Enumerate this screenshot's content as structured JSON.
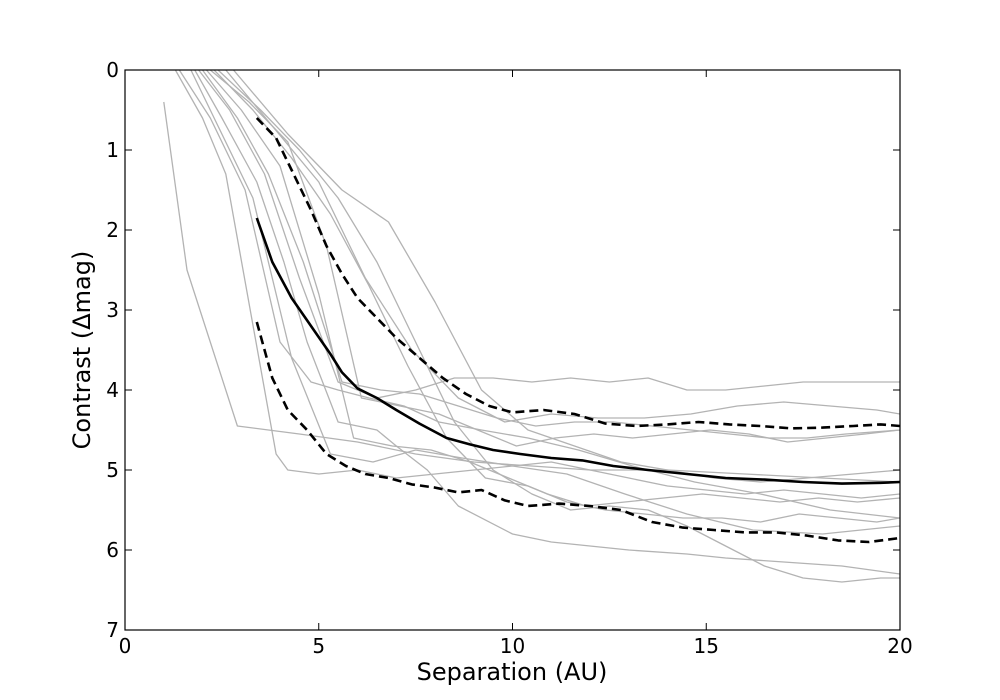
{
  "chart_data": {
    "type": "line",
    "title": "",
    "xlabel": "Separation (AU)",
    "ylabel": "Contrast (Δmag)",
    "xlim": [
      0,
      20
    ],
    "ylim": [
      0,
      7
    ],
    "y_inverted": true,
    "grid": false,
    "legend": "none",
    "x_ticks": [
      0,
      5,
      10,
      15,
      20
    ],
    "y_ticks": [
      0,
      1,
      2,
      3,
      4,
      5,
      6,
      7
    ],
    "colors": {
      "individual": "#b3b3b3",
      "median": "#000000",
      "bounds": "#000000"
    },
    "series": [
      {
        "style": "individual",
        "x": [
          1.0,
          1.6,
          2.9,
          4.5,
          6.0,
          7.5,
          9.0,
          10.5,
          12.0,
          14.0,
          16.0,
          18.0,
          20.0
        ],
        "y": [
          0.4,
          2.5,
          4.45,
          4.55,
          4.65,
          4.8,
          4.9,
          4.95,
          5.0,
          5.0,
          5.05,
          5.1,
          5.15
        ]
      },
      {
        "style": "individual",
        "x": [
          1.3,
          2.0,
          2.6,
          3.9,
          4.2,
          5.0,
          6.0,
          7.0,
          8.0,
          9.0,
          10.0,
          11.0,
          12.0,
          13.0,
          14.0,
          15.0,
          16.0,
          17.0,
          18.0,
          19.0,
          20.0
        ],
        "y": [
          0.0,
          0.6,
          1.3,
          4.8,
          5.0,
          5.05,
          5.0,
          5.1,
          5.05,
          5.0,
          4.95,
          4.9,
          5.0,
          5.1,
          5.2,
          5.25,
          5.3,
          5.25,
          5.3,
          5.35,
          5.3
        ]
      },
      {
        "style": "individual",
        "x": [
          1.4,
          2.2,
          3.1,
          4.0,
          4.8,
          5.5,
          6.3,
          7.2,
          8.1,
          9.2,
          10.4,
          11.7,
          13.1,
          14.7,
          16.4,
          18.2,
          20.0
        ],
        "y": [
          0.0,
          0.6,
          1.5,
          3.4,
          3.9,
          4.0,
          4.1,
          4.2,
          4.4,
          4.5,
          4.6,
          4.75,
          4.95,
          5.15,
          5.3,
          5.5,
          5.6
        ]
      },
      {
        "style": "individual",
        "x": [
          1.7,
          2.4,
          3.3,
          4.3,
          5.3,
          6.4,
          7.5,
          8.7,
          10.0,
          11.4,
          12.9,
          14.5,
          16.2,
          18.0,
          20.0
        ],
        "y": [
          0.0,
          0.7,
          1.6,
          3.6,
          4.8,
          4.9,
          4.75,
          4.85,
          4.95,
          5.05,
          5.3,
          5.55,
          5.75,
          5.8,
          5.7
        ]
      },
      {
        "style": "individual",
        "x": [
          1.8,
          2.5,
          3.4,
          4.1,
          4.7,
          5.5,
          6.5,
          7.0,
          7.8,
          8.6,
          10.0,
          11.0,
          12.0,
          13.0,
          14.5,
          15.5,
          17.0,
          18.5,
          20.0
        ],
        "y": [
          0.0,
          0.6,
          1.4,
          2.4,
          3.4,
          4.4,
          4.5,
          4.7,
          5.0,
          5.45,
          5.8,
          5.9,
          5.95,
          6.0,
          6.05,
          6.1,
          6.15,
          6.2,
          6.3
        ]
      },
      {
        "style": "individual",
        "x": [
          1.9,
          2.7,
          3.6,
          4.5,
          5.5,
          6.5,
          7.5,
          8.5,
          9.5,
          10.5,
          11.5,
          12.5,
          13.5,
          14.5,
          15.5,
          16.5,
          17.5,
          18.5,
          20.0
        ],
        "y": [
          0.0,
          0.5,
          1.3,
          2.6,
          3.9,
          4.1,
          4.0,
          3.85,
          3.85,
          3.9,
          3.85,
          3.9,
          3.85,
          4.0,
          4.0,
          3.95,
          3.9,
          3.9,
          3.9
        ]
      },
      {
        "style": "individual",
        "x": [
          2.0,
          2.9,
          3.7,
          4.6,
          5.6,
          6.6,
          7.6,
          8.6,
          9.6,
          10.6,
          11.6,
          12.6,
          13.6,
          14.6,
          15.6,
          16.6,
          17.6,
          18.6,
          20.0
        ],
        "y": [
          0.0,
          0.6,
          1.3,
          2.4,
          3.9,
          4.0,
          4.05,
          4.2,
          4.35,
          4.45,
          4.4,
          4.4,
          4.45,
          4.5,
          4.55,
          4.6,
          4.6,
          4.55,
          4.5
        ]
      },
      {
        "style": "individual",
        "x": [
          2.1,
          3.0,
          4.0,
          5.0,
          5.9,
          6.9,
          7.9,
          8.9,
          9.9,
          10.9,
          11.9,
          12.9,
          13.9,
          14.9,
          15.9,
          16.9,
          17.9,
          18.9,
          20.0
        ],
        "y": [
          0.0,
          0.5,
          1.2,
          2.8,
          4.6,
          4.7,
          4.75,
          4.9,
          5.1,
          5.3,
          5.45,
          5.4,
          5.35,
          5.3,
          5.35,
          5.4,
          5.35,
          5.4,
          5.35
        ]
      },
      {
        "style": "individual",
        "x": [
          2.2,
          3.2,
          4.2,
          5.2,
          6.1,
          7.1,
          8.1,
          9.1,
          10.1,
          11.1,
          12.1,
          13.1,
          14.1,
          15.1,
          16.1,
          17.1,
          18.1,
          19.1,
          20.0
        ],
        "y": [
          0.0,
          0.4,
          0.9,
          2.2,
          4.1,
          4.2,
          4.3,
          4.5,
          4.7,
          4.6,
          4.55,
          4.6,
          4.55,
          4.5,
          4.55,
          4.65,
          4.6,
          4.55,
          4.5
        ]
      },
      {
        "style": "individual",
        "x": [
          2.3,
          3.3,
          4.3,
          5.3,
          6.3,
          7.3,
          8.3,
          9.3,
          10.4,
          11.4,
          12.4,
          13.4,
          14.4,
          15.4,
          16.4,
          17.4,
          18.4,
          19.4,
          20.0
        ],
        "y": [
          0.0,
          0.5,
          1.1,
          1.8,
          2.7,
          3.7,
          4.6,
          5.1,
          5.2,
          5.4,
          5.5,
          5.55,
          5.6,
          5.6,
          5.65,
          5.55,
          5.6,
          5.65,
          5.6
        ]
      },
      {
        "style": "individual",
        "x": [
          2.4,
          3.5,
          4.5,
          5.5,
          6.5,
          7.5,
          8.5,
          9.5,
          10.5,
          11.5,
          12.5,
          13.5,
          14.5,
          15.5,
          16.5,
          17.5,
          18.5,
          19.5,
          20.0
        ],
        "y": [
          0.0,
          0.5,
          1.0,
          1.6,
          2.4,
          3.4,
          4.4,
          5.0,
          5.3,
          5.5,
          5.45,
          5.5,
          5.7,
          5.95,
          6.2,
          6.35,
          6.4,
          6.35,
          6.35
        ]
      },
      {
        "style": "individual",
        "x": [
          2.6,
          3.8,
          5.0,
          6.2,
          7.4,
          8.6,
          9.8,
          11.0,
          12.2,
          13.4,
          14.6,
          15.8,
          17.0,
          18.2,
          19.4,
          20.0
        ],
        "y": [
          0.0,
          0.7,
          1.4,
          2.6,
          3.5,
          4.1,
          4.4,
          4.3,
          4.35,
          4.35,
          4.3,
          4.2,
          4.15,
          4.2,
          4.25,
          4.3
        ]
      },
      {
        "style": "individual",
        "x": [
          2.8,
          4.2,
          5.6,
          6.8,
          8.0,
          9.2,
          10.4,
          11.6,
          12.8,
          14.0,
          15.2,
          16.4,
          17.6,
          18.8,
          20.0
        ],
        "y": [
          0.0,
          0.8,
          1.5,
          1.9,
          2.9,
          4.0,
          4.5,
          4.7,
          4.9,
          5.0,
          5.1,
          5.15,
          5.1,
          5.05,
          5.0
        ]
      },
      {
        "style": "median",
        "x": [
          3.4,
          3.8,
          4.3,
          4.8,
          5.3,
          5.6,
          6.0,
          6.5,
          7.0,
          7.6,
          8.3,
          8.9,
          9.5,
          10.2,
          11.0,
          11.8,
          12.6,
          13.5,
          14.5,
          15.5,
          16.5,
          17.5,
          18.5,
          19.5,
          20.0
        ],
        "y": [
          1.85,
          2.4,
          2.85,
          3.2,
          3.55,
          3.78,
          3.98,
          4.1,
          4.25,
          4.42,
          4.6,
          4.68,
          4.75,
          4.8,
          4.85,
          4.88,
          4.95,
          5.0,
          5.05,
          5.1,
          5.12,
          5.15,
          5.17,
          5.16,
          5.15
        ]
      },
      {
        "style": "bounds",
        "x": [
          3.4,
          3.9,
          4.3,
          4.8,
          5.2,
          5.6,
          6.0,
          6.5,
          7.0,
          7.6,
          8.2,
          8.8,
          9.4,
          10.0,
          10.8,
          11.6,
          12.4,
          13.2,
          14.0,
          14.8,
          15.6,
          16.4,
          17.2,
          18.0,
          18.8,
          19.5,
          20.0
        ],
        "y": [
          0.6,
          0.85,
          1.25,
          1.75,
          2.2,
          2.55,
          2.85,
          3.1,
          3.35,
          3.6,
          3.85,
          4.05,
          4.2,
          4.28,
          4.25,
          4.3,
          4.42,
          4.45,
          4.43,
          4.4,
          4.43,
          4.45,
          4.48,
          4.47,
          4.45,
          4.43,
          4.45
        ]
      },
      {
        "style": "bounds",
        "x": [
          3.4,
          3.8,
          4.2,
          4.7,
          5.2,
          5.7,
          6.2,
          6.8,
          7.4,
          8.0,
          8.6,
          9.2,
          9.8,
          10.4,
          11.2,
          12.0,
          12.8,
          13.6,
          14.4,
          15.2,
          16.0,
          16.8,
          17.6,
          18.4,
          19.2,
          20.0
        ],
        "y": [
          3.15,
          3.85,
          4.25,
          4.5,
          4.8,
          4.95,
          5.05,
          5.1,
          5.18,
          5.22,
          5.28,
          5.25,
          5.38,
          5.45,
          5.42,
          5.45,
          5.5,
          5.65,
          5.72,
          5.75,
          5.78,
          5.78,
          5.82,
          5.88,
          5.9,
          5.85
        ]
      }
    ]
  }
}
